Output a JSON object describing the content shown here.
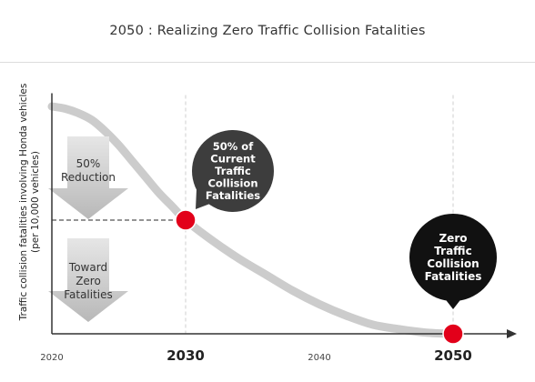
{
  "header": {
    "title": "2050 : Realizing Zero Traffic Collision Fatalities"
  },
  "chart_data": {
    "type": "line",
    "title": "2050 : Realizing Zero Traffic Collision Fatalities",
    "ylabel_lines": [
      "Traffic collision fatalities involving Honda vehicles",
      "(per 10,000 vehicles)"
    ],
    "xlabel": "",
    "xlim": [
      2020,
      2055
    ],
    "ylim": [
      0,
      105
    ],
    "x_ticks": [
      {
        "value": 2020,
        "label": "2020",
        "major": false
      },
      {
        "value": 2030,
        "label": "2030",
        "major": true
      },
      {
        "value": 2040,
        "label": "2040",
        "major": false
      },
      {
        "value": 2050,
        "label": "2050",
        "major": true
      }
    ],
    "series": [
      {
        "x": [
          2020,
          2021,
          2022,
          2023,
          2024,
          2025,
          2026,
          2027,
          2028,
          2029,
          2030,
          2032,
          2034,
          2036,
          2038,
          2040,
          2042,
          2044,
          2046,
          2048,
          2050
        ],
        "y": [
          100,
          99,
          97,
          94,
          89,
          83,
          76,
          69,
          62,
          56,
          50,
          41,
          33,
          26,
          19,
          13,
          8,
          4,
          2,
          0.5,
          0
        ]
      }
    ],
    "highlight_points": [
      {
        "x": 2030,
        "y": 50,
        "label_lines": [
          "50% of",
          "Current",
          "Traffic",
          "Collision",
          "Fatalities"
        ]
      },
      {
        "x": 2050,
        "y": 0,
        "label_lines": [
          "Zero",
          "Traffic",
          "Collision",
          "Fatalities"
        ]
      }
    ],
    "arrows": [
      {
        "label_lines": [
          "50%",
          "Reduction"
        ]
      },
      {
        "label_lines": [
          "Toward",
          "Zero",
          "Fatalities"
        ]
      }
    ],
    "reference_line_y": 50,
    "colors": {
      "curve": "#cccccc",
      "marker": "#e2001a",
      "bubble_2030": "#3d3d3d",
      "bubble_2050": "#111111",
      "arrow": "#b8b8b8",
      "axis": "#333333",
      "grid": "#cfcfcf"
    },
    "grid": "vertical dashed at major ticks"
  }
}
